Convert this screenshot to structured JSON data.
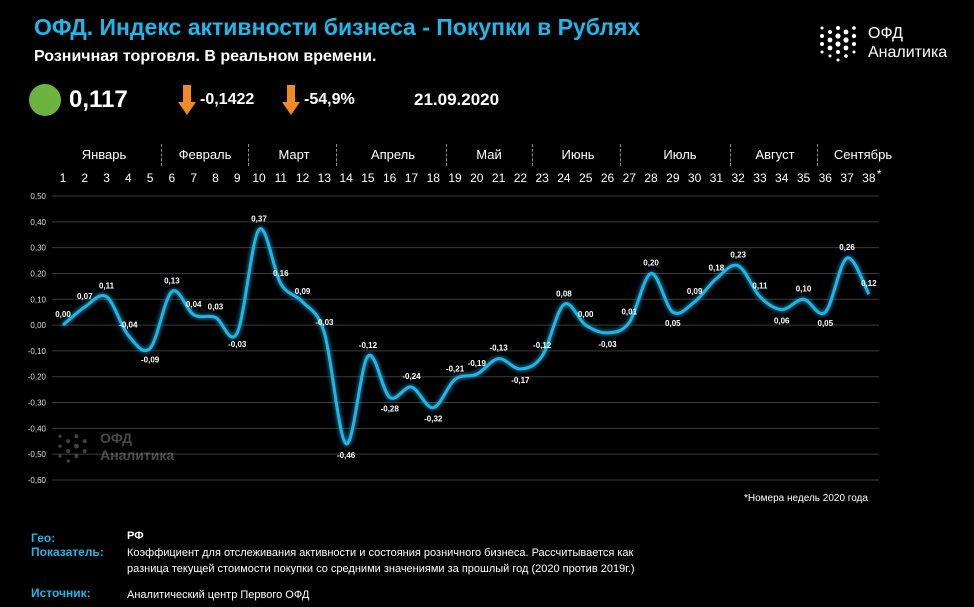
{
  "header": {
    "title": "ОФД. Индекс активности бизнеса - Покупки в Рублях",
    "subtitle": "Розничная торговля. В реальном времени.",
    "logo_line1": "ОФД",
    "logo_line2": "Аналитика"
  },
  "kpi": {
    "value": "0,117",
    "change_abs": "-0,1422",
    "change_pct": "-54,9%",
    "date": "21.09.2020",
    "status_color": "#6cb33f",
    "arrow_color": "#f08a24"
  },
  "months": [
    "Январь",
    "Февраль",
    "Март",
    "Апрель",
    "Май",
    "Июнь",
    "Июль",
    "Август",
    "Сентябрь"
  ],
  "weeks_asterisk": "*",
  "note": "*Номера недель 2020 года",
  "watermark": {
    "line1": "ОФД",
    "line2": "Аналитика"
  },
  "footer": {
    "geo_label": "Гео:",
    "geo_value": "РФ",
    "indicator_label": "Показатель:",
    "indicator_value_line1": "Коэффициент для отслеживания активности и состояния розничного бизнеса. Рассчитывается как",
    "indicator_value_line2": "разница текущей стоимости покупки со средними значениями за прошлый год (2020 против 2019г.)",
    "source_label": "Источник:",
    "source_value": "Аналитический центр  Первого ОФД"
  },
  "chart_data": {
    "type": "line",
    "x": [
      1,
      2,
      3,
      4,
      5,
      6,
      7,
      8,
      9,
      10,
      11,
      12,
      13,
      14,
      15,
      16,
      17,
      18,
      19,
      20,
      21,
      22,
      23,
      24,
      25,
      26,
      27,
      28,
      29,
      30,
      31,
      32,
      33,
      34,
      35,
      36,
      37,
      38
    ],
    "values": [
      0.0,
      0.07,
      0.11,
      -0.04,
      -0.09,
      0.13,
      0.04,
      0.03,
      -0.03,
      0.37,
      0.16,
      0.09,
      -0.03,
      -0.46,
      -0.12,
      -0.28,
      -0.24,
      -0.32,
      -0.21,
      -0.19,
      -0.13,
      -0.17,
      -0.12,
      0.08,
      0.0,
      -0.03,
      0.01,
      0.2,
      0.05,
      0.09,
      0.18,
      0.23,
      0.11,
      0.06,
      0.1,
      0.05,
      0.26,
      0.12
    ],
    "data_labels": [
      "0,00",
      "0,07",
      "0,11",
      "-0,04",
      "-0,09",
      "0,13",
      "0,04",
      "0,03",
      "-0,03",
      "0,37",
      "0,16",
      "0,09",
      "-0,03",
      "-0,46",
      "-0,12",
      "-0,28",
      "-0,24",
      "-0,32",
      "-0,21",
      "-0,19",
      "-0,13",
      "-0,17",
      "-0,12",
      "0,08",
      "0,00",
      "-0,03",
      "0,01",
      "0,20",
      "0,05",
      "0,09",
      "0,18",
      "0,23",
      "0,11",
      "0,06",
      "0,10",
      "0,05",
      "0,26",
      "0,12"
    ],
    "y_ticks": [
      "0,50",
      "0,40",
      "0,30",
      "0,20",
      "0,10",
      "0,00",
      "-0,10",
      "-0,20",
      "-0,30",
      "-0,40",
      "-0,50",
      "-0,60"
    ],
    "ylim": [
      -0.6,
      0.5
    ],
    "grid": true,
    "line_color": "#1fb6e8",
    "xlabel": "",
    "ylabel": ""
  }
}
